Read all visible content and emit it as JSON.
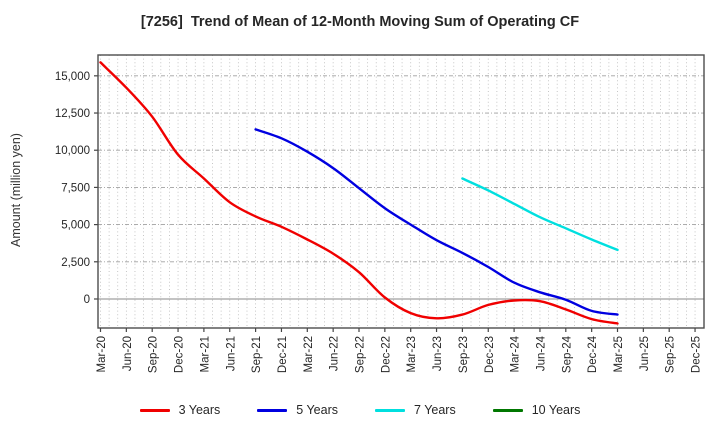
{
  "chart_data": {
    "type": "line",
    "title": "[7256]  Trend of Mean of 12-Month Moving Sum of Operating CF",
    "ylabel": "Amount (million yen)",
    "xlabel": "",
    "categories": [
      "Mar-20",
      "Jun-20",
      "Sep-20",
      "Dec-20",
      "Mar-21",
      "Jun-21",
      "Sep-21",
      "Dec-21",
      "Mar-22",
      "Jun-22",
      "Sep-22",
      "Dec-22",
      "Mar-23",
      "Jun-23",
      "Sep-23",
      "Dec-23",
      "Mar-24",
      "Jun-24",
      "Sep-24",
      "Dec-24",
      "Mar-25",
      "Jun-25",
      "Sep-25",
      "Dec-25"
    ],
    "ytick_values": [
      0,
      2500,
      5000,
      7500,
      10000,
      12500,
      15000
    ],
    "ytick_labels": [
      "0",
      "2,500",
      "5,000",
      "7,500",
      "10,000",
      "12,500",
      "15,000"
    ],
    "ylim": [
      -1950,
      16400
    ],
    "grid": true,
    "legend_position": "bottom",
    "units": "million yen",
    "series": [
      {
        "name": "3 Years",
        "color": "#f00000",
        "start_index": 0,
        "values": [
          15900,
          14200,
          12250,
          9700,
          8100,
          6500,
          5550,
          4850,
          4000,
          3050,
          1800,
          100,
          -950,
          -1300,
          -1050,
          -400,
          -100,
          -150,
          -700,
          -1350,
          -1650
        ]
      },
      {
        "name": "5 Years",
        "color": "#0000e0",
        "start_index": 6,
        "values": [
          11400,
          10800,
          9900,
          8800,
          7450,
          6100,
          5000,
          3950,
          3100,
          2150,
          1100,
          450,
          -50,
          -800,
          -1050
        ]
      },
      {
        "name": "7 Years",
        "color": "#00dfdf",
        "start_index": 14,
        "values": [
          8100,
          7300,
          6400,
          5500,
          4750,
          4000,
          3300
        ]
      },
      {
        "name": "10 Years",
        "color": "#007700",
        "start_index": 0,
        "values": []
      }
    ]
  }
}
